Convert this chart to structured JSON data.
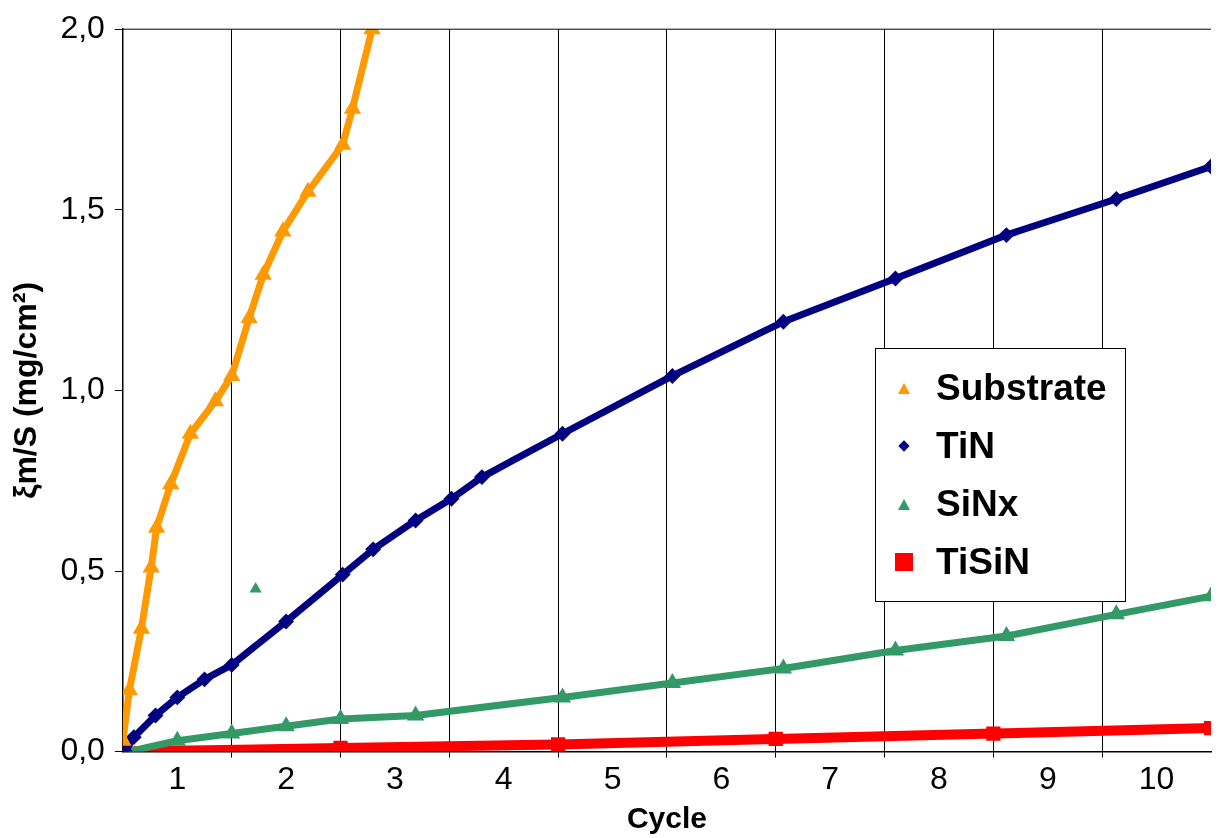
{
  "chart_data": {
    "type": "line",
    "xlabel": "Cycle",
    "ylabel": "ξm/S (mg/cm²)",
    "xlim": [
      0.5,
      10.5
    ],
    "xticks": [
      1,
      {
        "value": 1.5,
        "label": null
      },
      2,
      {
        "value": 2.5,
        "label": null
      },
      3,
      {
        "value": 3.5,
        "label": null
      },
      4,
      {
        "value": 4.5,
        "label": null
      },
      5,
      {
        "value": 5.5,
        "label": null
      },
      6,
      {
        "value": 6.5,
        "label": null
      },
      7,
      {
        "value": 7.5,
        "label": null
      },
      8,
      {
        "value": 8.5,
        "label": null
      },
      9,
      {
        "value": 9.5,
        "label": null
      },
      10
    ],
    "ylim": [
      0,
      2
    ],
    "yticks": [
      {
        "value": 0,
        "label": "0,0"
      },
      {
        "value": 0.5,
        "label": "0,5"
      },
      {
        "value": 1,
        "label": "1,0"
      },
      {
        "value": 1.5,
        "label": "1,5"
      },
      {
        "value": 2,
        "label": "2,0"
      }
    ],
    "grid": "x",
    "legend": "right",
    "series": [
      {
        "name": "Substrate",
        "color": "#ff9900",
        "marker": "triangle",
        "x": [
          0.5,
          0.56,
          0.67,
          0.76,
          0.81,
          0.94,
          1.12,
          1.35,
          1.5,
          1.66,
          1.79,
          1.97,
          2.2,
          2.52,
          2.61,
          2.79
        ],
        "values": [
          0.03,
          0.17,
          0.34,
          0.51,
          0.62,
          0.74,
          0.88,
          0.97,
          1.04,
          1.2,
          1.32,
          1.44,
          1.55,
          1.68,
          1.78,
          2.0
        ]
      },
      {
        "name": "TiN",
        "color": "#000080",
        "marker": "diamond",
        "x": [
          0.52,
          0.6,
          0.8,
          1.0,
          1.25,
          1.5,
          2.0,
          2.52,
          2.8,
          3.19,
          3.52,
          3.8,
          4.54,
          5.55,
          6.57,
          7.6,
          8.62,
          9.63,
          10.5
        ],
        "values": [
          0,
          0.04,
          0.1,
          0.15,
          0.2,
          0.24,
          0.36,
          0.49,
          0.56,
          0.64,
          0.7,
          0.76,
          0.88,
          1.04,
          1.19,
          1.31,
          1.43,
          1.53,
          1.62
        ]
      },
      {
        "name": "SiNx",
        "color": "#339966",
        "marker": "triangle",
        "x": [
          0.55,
          1.0,
          1.5,
          2.0,
          2.5,
          3.19,
          4.54,
          5.55,
          6.57,
          7.6,
          8.62,
          9.63,
          10.5
        ],
        "values": [
          0,
          0.03,
          0.05,
          0.07,
          0.09,
          0.1,
          0.15,
          0.19,
          0.23,
          0.28,
          0.32,
          0.38,
          0.43
        ]
      },
      {
        "name": "TiSiN",
        "color": "#ff0000",
        "marker": "square",
        "x": [
          0.5,
          2.5,
          4.5,
          6.5,
          8.5,
          10.5
        ],
        "values": [
          0,
          0.01,
          0.02,
          0.035,
          0.05,
          0.065
        ]
      },
      {
        "type": "scatter",
        "color": "#339966",
        "marker": "triangle",
        "x": [
          1.72
        ],
        "values": [
          0.45
        ]
      }
    ]
  }
}
